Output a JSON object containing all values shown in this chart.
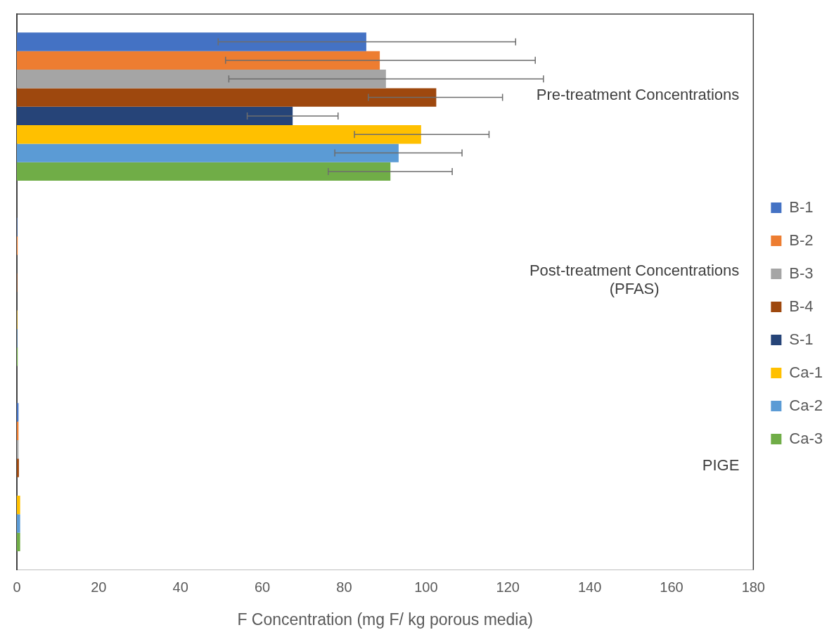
{
  "chart_data": {
    "type": "bar",
    "orientation": "horizontal",
    "xlabel": "F Concentration (mg F/ kg porous media)",
    "categories": [
      "Pre-treatment Concentrations",
      "Post-treatment Concentrations (PFAS)",
      "PIGE"
    ],
    "xlim": [
      0,
      180
    ],
    "xticks": [
      0,
      20,
      40,
      60,
      80,
      100,
      120,
      140,
      160,
      180
    ],
    "grid": false,
    "legend": "right",
    "series": [
      {
        "name": "B-1",
        "color": "#4472c4",
        "values": [
          85.4,
          0.1,
          0.4
        ],
        "errors": [
          [
            49.2,
            121.9
          ],
          null,
          null
        ]
      },
      {
        "name": "B-2",
        "color": "#ed7d31",
        "values": [
          88.7,
          0.2,
          0.4
        ],
        "errors": [
          [
            51.0,
            126.7
          ],
          null,
          null
        ]
      },
      {
        "name": "B-3",
        "color": "#a5a5a5",
        "values": [
          90.2,
          null,
          0.4
        ],
        "errors": [
          [
            51.8,
            128.7
          ],
          null,
          null
        ]
      },
      {
        "name": "B-4",
        "color": "#9e480e",
        "values": [
          102.5,
          0.1,
          0.5
        ],
        "errors": [
          [
            85.9,
            118.7
          ],
          null,
          null
        ]
      },
      {
        "name": "S-1",
        "color": "#264478",
        "values": [
          67.4,
          null,
          null
        ],
        "errors": [
          [
            56.3,
            78.5
          ],
          null,
          null
        ]
      },
      {
        "name": "Ca-1",
        "color": "#ffc000",
        "values": [
          98.8,
          0.1,
          0.8
        ],
        "errors": [
          [
            82.5,
            115.4
          ],
          null,
          null
        ]
      },
      {
        "name": "Ca-2",
        "color": "#5b9bd5",
        "values": [
          93.3,
          0.1,
          0.8
        ],
        "errors": [
          [
            77.7,
            108.8
          ],
          null,
          null
        ]
      },
      {
        "name": "Ca-3",
        "color": "#70ad47",
        "values": [
          91.3,
          0.2,
          0.8
        ],
        "errors": [
          [
            76.1,
            106.4
          ],
          null,
          null
        ]
      }
    ]
  }
}
